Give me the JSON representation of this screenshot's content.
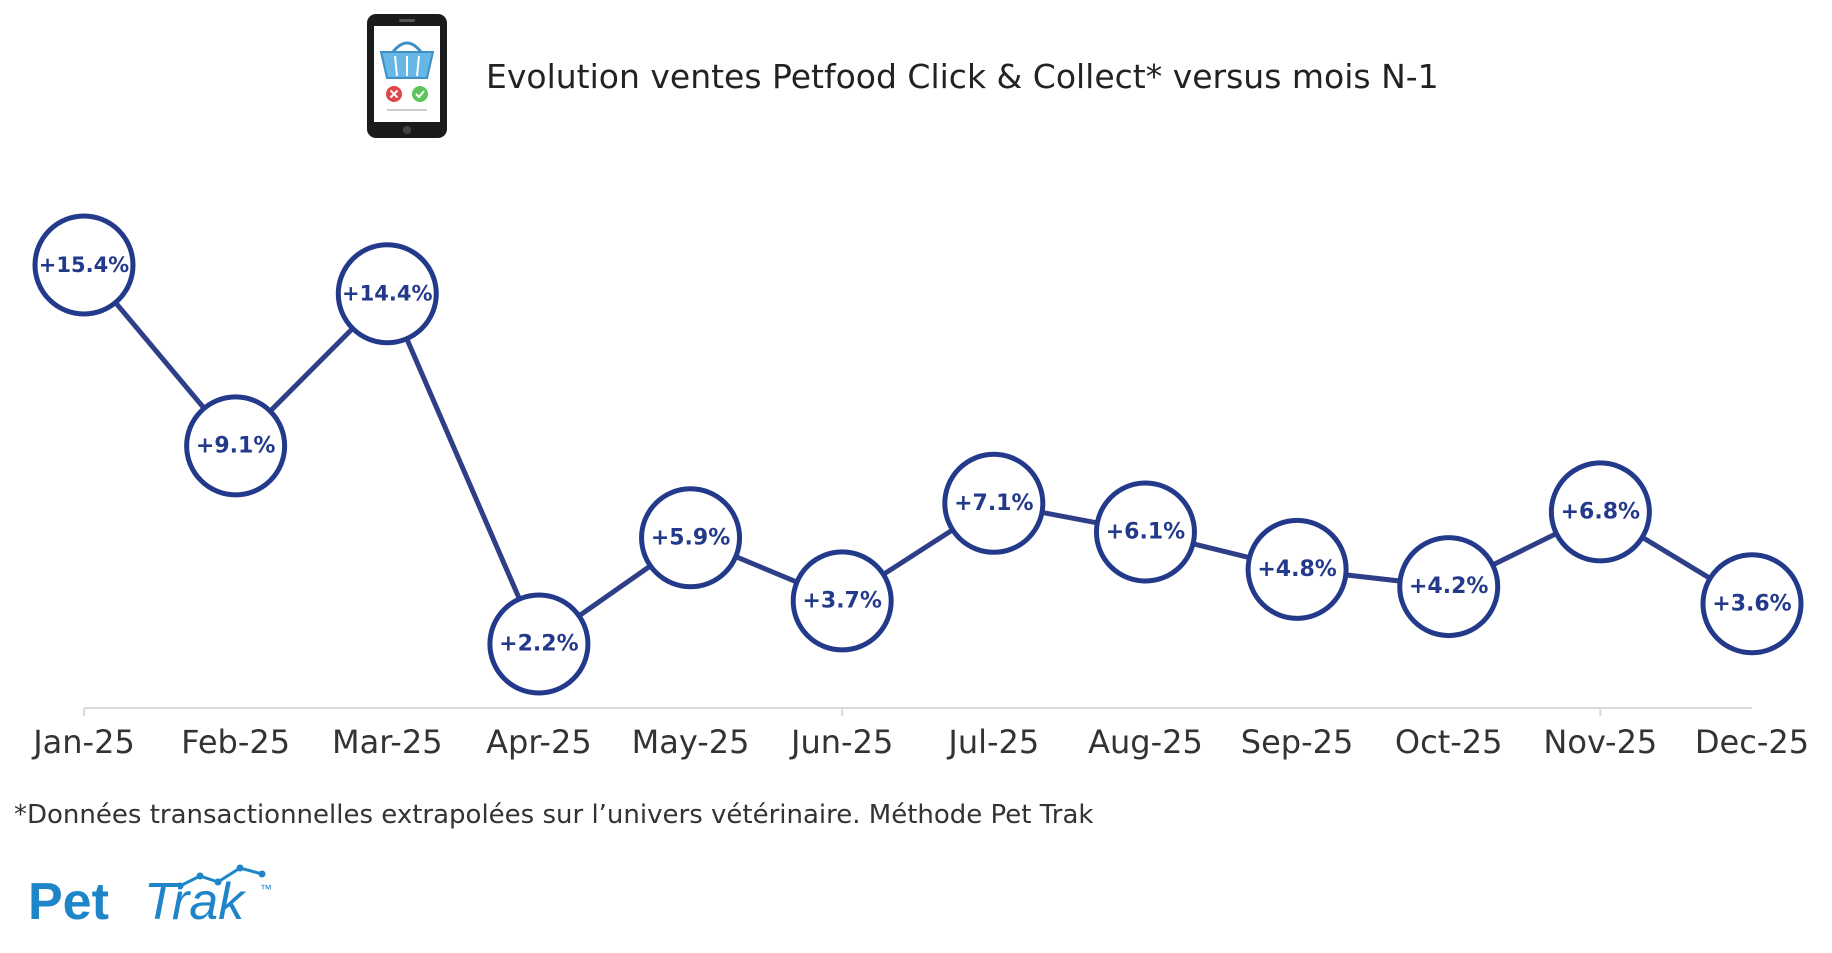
{
  "header": {
    "title": "Evolution ventes Petfood Click & Collect* versus mois N-1",
    "icon": "shopping-basket-phone-icon"
  },
  "chart_data": {
    "type": "line",
    "title": "Evolution ventes Petfood Click & Collect* versus mois N-1",
    "xlabel": "",
    "ylabel": "",
    "categories": [
      "Jan-25",
      "Feb-25",
      "Mar-25",
      "Apr-25",
      "May-25",
      "Jun-25",
      "Jul-25",
      "Aug-25",
      "Sep-25",
      "Oct-25",
      "Nov-25",
      "Dec-25"
    ],
    "values": [
      15.4,
      9.1,
      14.4,
      2.2,
      5.9,
      3.7,
      7.1,
      6.1,
      4.8,
      4.2,
      6.8,
      3.6
    ],
    "data_labels": [
      "+15.4%",
      "+9.1%",
      "+14.4%",
      "+2.2%",
      "+5.9%",
      "+3.7%",
      "+7.1%",
      "+6.1%",
      "+4.8%",
      "+4.2%",
      "+6.8%",
      "+3.6%"
    ],
    "grid": false,
    "legend": "none",
    "line_color": "#2e3f87",
    "marker_stroke_color": "#233a8b",
    "label_color": "#233a8b"
  },
  "footnote": "*Données transactionnelles extrapolées sur l’univers vétérinaire. Méthode Pet Trak",
  "logo": {
    "text_part1": "Pet",
    "text_part2": "Trak",
    "tm": "™",
    "color": "#1e86c8"
  }
}
